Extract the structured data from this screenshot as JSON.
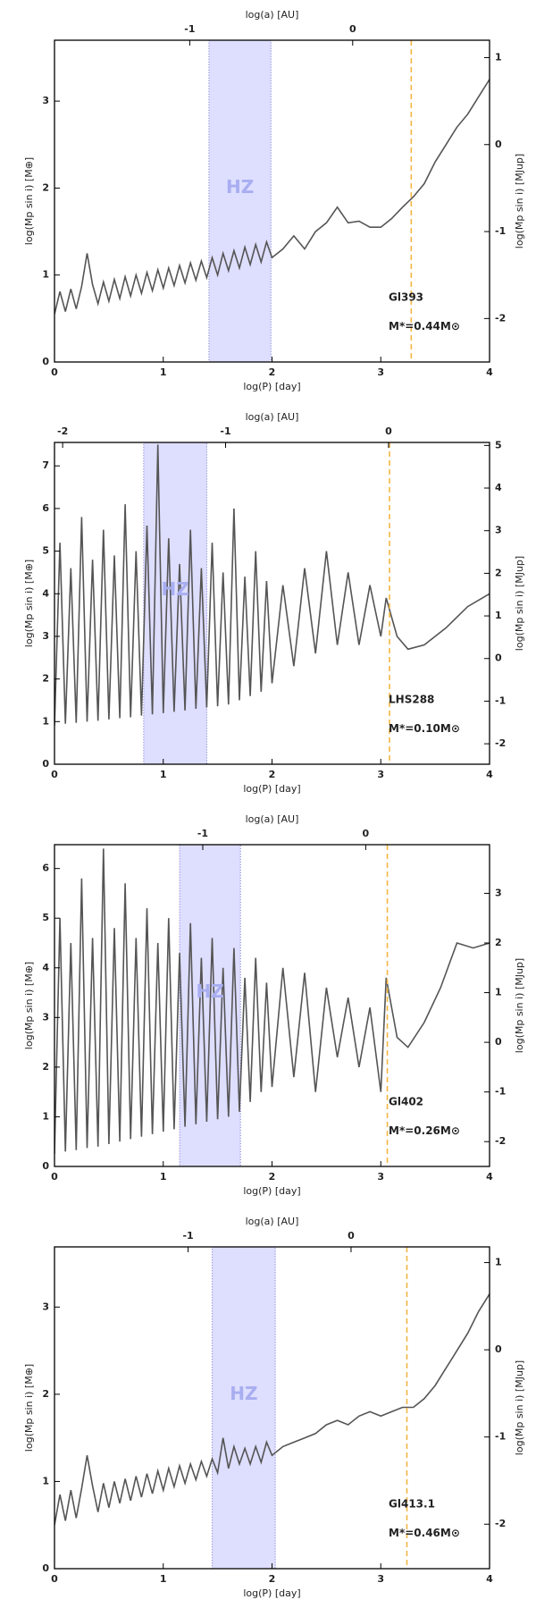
{
  "chart_data": [
    {
      "type": "line",
      "name": "Gl393",
      "mass_label": "M*=0.44M⊙",
      "band_label": "HZ",
      "xlabel": "log(P) [day]",
      "x2label": "log(a) [AU]",
      "ylabel": "log(Mp sin i) [M⊕]",
      "y2label": "log(Mp sin i) [MJup]",
      "xlim": [
        0,
        4
      ],
      "xticks": [
        0,
        1,
        2,
        3,
        4
      ],
      "x2lim": [
        -1.83,
        0.84
      ],
      "x2ticks": [
        -1,
        0
      ],
      "ylim": [
        0,
        3.7
      ],
      "yticks": [
        0,
        1,
        2,
        3
      ],
      "y2lim": [
        -2.5,
        1.2
      ],
      "y2ticks": [
        -2,
        -1,
        0,
        1
      ],
      "hz_band": [
        1.42,
        1.99
      ],
      "band_color": "#d8d8ff",
      "vline": 3.28,
      "vline_color": "#f5b642",
      "color": "#555555",
      "x": [
        0,
        0.05,
        0.1,
        0.15,
        0.2,
        0.25,
        0.3,
        0.35,
        0.4,
        0.45,
        0.5,
        0.55,
        0.6,
        0.65,
        0.7,
        0.75,
        0.8,
        0.85,
        0.9,
        0.95,
        1.0,
        1.05,
        1.1,
        1.15,
        1.2,
        1.25,
        1.3,
        1.35,
        1.4,
        1.45,
        1.5,
        1.55,
        1.6,
        1.65,
        1.7,
        1.75,
        1.8,
        1.85,
        1.9,
        1.95,
        2.0,
        2.1,
        2.2,
        2.3,
        2.4,
        2.5,
        2.6,
        2.7,
        2.8,
        2.9,
        3.0,
        3.1,
        3.2,
        3.3,
        3.4,
        3.5,
        3.6,
        3.7,
        3.8,
        3.9,
        4.0
      ],
      "values": [
        0.55,
        0.81,
        0.58,
        0.84,
        0.61,
        0.87,
        1.25,
        0.89,
        0.67,
        0.92,
        0.7,
        0.95,
        0.73,
        0.98,
        0.76,
        1.0,
        0.79,
        1.03,
        0.82,
        1.06,
        0.85,
        1.08,
        0.88,
        1.11,
        0.91,
        1.14,
        0.94,
        1.16,
        0.97,
        1.2,
        1.0,
        1.25,
        1.05,
        1.28,
        1.08,
        1.32,
        1.12,
        1.35,
        1.15,
        1.38,
        1.2,
        1.3,
        1.45,
        1.3,
        1.5,
        1.6,
        1.78,
        1.6,
        1.62,
        1.55,
        1.55,
        1.65,
        1.78,
        1.9,
        2.05,
        2.3,
        2.5,
        2.7,
        2.85,
        3.05,
        3.25
      ]
    },
    {
      "type": "line",
      "name": "LHS288",
      "mass_label": "M*=0.10M⊙",
      "band_label": "HZ",
      "xlabel": "log(P) [day]",
      "x2label": "log(a) [AU]",
      "ylabel": "log(Mp sin i) [M⊕]",
      "y2label": "log(Mp sin i) [MJup]",
      "xlim": [
        0,
        4
      ],
      "xticks": [
        0,
        1,
        2,
        3,
        4
      ],
      "x2lim": [
        -2.05,
        0.62
      ],
      "x2ticks": [
        -2,
        -1,
        0
      ],
      "ylim": [
        0,
        7.55
      ],
      "yticks": [
        0,
        1,
        2,
        3,
        4,
        5,
        6,
        7
      ],
      "y2lim": [
        -2.48,
        5.07
      ],
      "y2ticks": [
        -2,
        -1,
        0,
        1,
        2,
        3,
        4,
        5
      ],
      "hz_band": [
        0.82,
        1.4
      ],
      "band_color": "#d8d8ff",
      "vline": 3.08,
      "vline_color": "#f5b642",
      "color": "#555555",
      "x": [
        0,
        0.05,
        0.1,
        0.15,
        0.2,
        0.25,
        0.3,
        0.35,
        0.4,
        0.45,
        0.5,
        0.55,
        0.6,
        0.65,
        0.7,
        0.75,
        0.8,
        0.85,
        0.9,
        0.95,
        1.0,
        1.05,
        1.1,
        1.15,
        1.2,
        1.25,
        1.3,
        1.35,
        1.4,
        1.45,
        1.5,
        1.55,
        1.6,
        1.65,
        1.7,
        1.75,
        1.8,
        1.85,
        1.9,
        1.95,
        2.0,
        2.1,
        2.2,
        2.3,
        2.4,
        2.5,
        2.6,
        2.7,
        2.8,
        2.9,
        3.0,
        3.05,
        3.15,
        3.25,
        3.4,
        3.6,
        3.8,
        4.0
      ],
      "values": [
        0.9,
        5.2,
        0.95,
        4.6,
        0.97,
        5.8,
        1.0,
        4.8,
        1.02,
        5.5,
        1.05,
        4.9,
        1.08,
        6.1,
        1.1,
        5.0,
        1.14,
        5.6,
        1.17,
        7.5,
        1.2,
        5.3,
        1.23,
        4.7,
        1.26,
        5.5,
        1.3,
        4.6,
        1.33,
        5.2,
        1.36,
        4.5,
        1.4,
        6.0,
        1.5,
        4.4,
        1.6,
        5.0,
        1.7,
        4.3,
        1.9,
        4.2,
        2.3,
        4.6,
        2.6,
        5.0,
        2.8,
        4.5,
        2.8,
        4.2,
        3.0,
        3.9,
        3.0,
        2.7,
        2.8,
        3.2,
        3.7,
        4.0
      ]
    },
    {
      "type": "line",
      "name": "Gl402",
      "mass_label": "M*=0.26M⊙",
      "band_label": "HZ",
      "xlabel": "log(P) [day]",
      "x2label": "log(a) [AU]",
      "ylabel": "log(Mp sin i) [M⊕]",
      "y2label": "log(Mp sin i) [MJup]",
      "xlim": [
        0,
        4
      ],
      "xticks": [
        0,
        1,
        2,
        3,
        4
      ],
      "x2lim": [
        -1.91,
        0.76
      ],
      "x2ticks": [
        -1,
        0
      ],
      "ylim": [
        0,
        6.48
      ],
      "yticks": [
        0,
        1,
        2,
        3,
        4,
        5,
        6
      ],
      "y2lim": [
        -2.5,
        3.98
      ],
      "y2ticks": [
        -2,
        -1,
        0,
        1,
        2,
        3
      ],
      "hz_band": [
        1.15,
        1.71
      ],
      "band_color": "#d8d8ff",
      "vline": 3.06,
      "vline_color": "#f5b642",
      "color": "#555555",
      "x": [
        0,
        0.05,
        0.1,
        0.15,
        0.2,
        0.25,
        0.3,
        0.35,
        0.4,
        0.45,
        0.5,
        0.55,
        0.6,
        0.65,
        0.7,
        0.75,
        0.8,
        0.85,
        0.9,
        0.95,
        1.0,
        1.05,
        1.1,
        1.15,
        1.2,
        1.25,
        1.3,
        1.35,
        1.4,
        1.45,
        1.5,
        1.55,
        1.6,
        1.65,
        1.7,
        1.75,
        1.8,
        1.85,
        1.9,
        1.95,
        2.0,
        2.1,
        2.2,
        2.3,
        2.4,
        2.5,
        2.6,
        2.7,
        2.8,
        2.9,
        3.0,
        3.05,
        3.15,
        3.25,
        3.4,
        3.55,
        3.7,
        3.85,
        4.0
      ],
      "values": [
        0.25,
        5.0,
        0.3,
        4.5,
        0.33,
        5.8,
        0.37,
        4.6,
        0.4,
        6.4,
        0.45,
        4.8,
        0.5,
        5.7,
        0.55,
        4.6,
        0.6,
        5.2,
        0.65,
        4.5,
        0.7,
        5.0,
        0.75,
        4.3,
        0.8,
        4.9,
        0.85,
        4.2,
        0.9,
        4.6,
        0.95,
        4.0,
        1.0,
        4.4,
        1.1,
        3.8,
        1.3,
        4.2,
        1.5,
        3.7,
        1.6,
        4.0,
        1.8,
        3.9,
        1.5,
        3.6,
        2.2,
        3.4,
        2.0,
        3.2,
        1.5,
        3.8,
        2.6,
        2.4,
        2.9,
        3.6,
        4.5,
        4.4,
        4.5
      ]
    },
    {
      "type": "line",
      "name": "Gl413.1",
      "mass_label": "M*=0.46M⊙",
      "band_label": "HZ",
      "xlabel": "log(P) [day]",
      "x2label": "log(a) [AU]",
      "ylabel": "log(Mp sin i) [M⊕]",
      "y2label": "log(Mp sin i) [MJup]",
      "xlim": [
        0,
        4
      ],
      "xticks": [
        0,
        1,
        2,
        3,
        4
      ],
      "x2lim": [
        -1.82,
        0.85
      ],
      "x2ticks": [
        -1,
        0
      ],
      "ylim": [
        0,
        3.69
      ],
      "yticks": [
        0,
        1,
        2,
        3
      ],
      "y2lim": [
        -2.51,
        1.18
      ],
      "y2ticks": [
        -2,
        -1,
        0,
        1
      ],
      "hz_band": [
        1.45,
        2.03
      ],
      "band_color": "#d8d8ff",
      "vline": 3.24,
      "vline_color": "#f5b642",
      "color": "#555555",
      "x": [
        0,
        0.05,
        0.1,
        0.15,
        0.2,
        0.25,
        0.3,
        0.35,
        0.4,
        0.45,
        0.5,
        0.55,
        0.6,
        0.65,
        0.7,
        0.75,
        0.8,
        0.85,
        0.9,
        0.95,
        1.0,
        1.05,
        1.1,
        1.15,
        1.2,
        1.25,
        1.3,
        1.35,
        1.4,
        1.45,
        1.5,
        1.55,
        1.6,
        1.65,
        1.7,
        1.75,
        1.8,
        1.85,
        1.9,
        1.95,
        2.0,
        2.1,
        2.2,
        2.3,
        2.4,
        2.5,
        2.6,
        2.7,
        2.8,
        2.9,
        3.0,
        3.1,
        3.2,
        3.3,
        3.4,
        3.5,
        3.6,
        3.7,
        3.8,
        3.9,
        4.0
      ],
      "values": [
        0.5,
        0.85,
        0.55,
        0.9,
        0.58,
        0.92,
        1.3,
        0.95,
        0.65,
        0.98,
        0.7,
        1.0,
        0.75,
        1.03,
        0.78,
        1.06,
        0.82,
        1.09,
        0.86,
        1.12,
        0.9,
        1.15,
        0.94,
        1.18,
        0.98,
        1.2,
        1.02,
        1.23,
        1.06,
        1.26,
        1.1,
        1.5,
        1.15,
        1.4,
        1.2,
        1.38,
        1.2,
        1.4,
        1.22,
        1.45,
        1.3,
        1.4,
        1.45,
        1.5,
        1.55,
        1.65,
        1.7,
        1.65,
        1.75,
        1.8,
        1.75,
        1.8,
        1.85,
        1.85,
        1.95,
        2.1,
        2.3,
        2.5,
        2.7,
        2.95,
        3.15
      ]
    }
  ]
}
